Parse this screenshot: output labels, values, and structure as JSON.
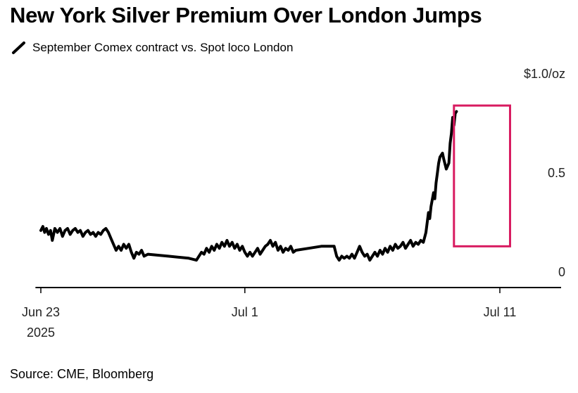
{
  "title": "New York Silver Premium Over London Jumps",
  "legend": {
    "label": "September Comex contract vs. Spot loco London",
    "color": "#000000"
  },
  "source": "Source: CME, Bloomberg",
  "highlight_color": "#d81b60",
  "chart_data": {
    "type": "line",
    "title": "New York Silver Premium Over London Jumps",
    "subtitle": "September Comex contract vs. Spot loco London",
    "xlabel": "",
    "ylabel": "",
    "y_unit_label": "$1.0/oz",
    "ylim": [
      0,
      1.0
    ],
    "y_ticks": [
      {
        "value": 1.0,
        "label": "$1.0/oz"
      },
      {
        "value": 0.5,
        "label": "0.5"
      },
      {
        "value": 0,
        "label": "0"
      }
    ],
    "x_ticks": [
      {
        "t": 0,
        "label": "Jun 23",
        "sublabel": "2025"
      },
      {
        "t": 8,
        "label": "Jul 1",
        "sublabel": ""
      },
      {
        "t": 18,
        "label": "Jul 11",
        "sublabel": ""
      }
    ],
    "x_range": [
      -0.1,
      20.5
    ],
    "grid": false,
    "highlight": {
      "t_start": 16.2,
      "t_end": 18.4,
      "y_start": 0.13,
      "y_end": 0.84
    },
    "series": [
      {
        "name": "September Comex contract vs. Spot loco London",
        "color": "#000000",
        "points": [
          [
            0.0,
            0.21
          ],
          [
            0.08,
            0.23
          ],
          [
            0.15,
            0.2
          ],
          [
            0.22,
            0.22
          ],
          [
            0.3,
            0.19
          ],
          [
            0.38,
            0.21
          ],
          [
            0.45,
            0.16
          ],
          [
            0.55,
            0.22
          ],
          [
            0.65,
            0.2
          ],
          [
            0.75,
            0.22
          ],
          [
            0.85,
            0.18
          ],
          [
            0.95,
            0.21
          ],
          [
            1.05,
            0.22
          ],
          [
            1.15,
            0.19
          ],
          [
            1.25,
            0.21
          ],
          [
            1.35,
            0.22
          ],
          [
            1.45,
            0.2
          ],
          [
            1.55,
            0.21
          ],
          [
            1.65,
            0.18
          ],
          [
            1.75,
            0.2
          ],
          [
            1.85,
            0.21
          ],
          [
            1.95,
            0.19
          ],
          [
            2.05,
            0.2
          ],
          [
            2.15,
            0.18
          ],
          [
            2.25,
            0.2
          ],
          [
            2.35,
            0.19
          ],
          [
            2.45,
            0.21
          ],
          [
            2.55,
            0.22
          ],
          [
            2.65,
            0.2
          ],
          [
            2.75,
            0.17
          ],
          [
            2.85,
            0.14
          ],
          [
            2.95,
            0.11
          ],
          [
            3.05,
            0.13
          ],
          [
            3.15,
            0.11
          ],
          [
            3.25,
            0.14
          ],
          [
            3.35,
            0.12
          ],
          [
            3.45,
            0.14
          ],
          [
            3.55,
            0.1
          ],
          [
            3.65,
            0.07
          ],
          [
            3.75,
            0.1
          ],
          [
            3.85,
            0.09
          ],
          [
            3.95,
            0.11
          ],
          [
            4.05,
            0.08
          ],
          [
            4.2,
            0.09
          ],
          [
            5.0,
            0.08
          ],
          [
            5.8,
            0.07
          ],
          [
            6.1,
            0.06
          ],
          [
            6.2,
            0.08
          ],
          [
            6.3,
            0.1
          ],
          [
            6.4,
            0.09
          ],
          [
            6.5,
            0.12
          ],
          [
            6.6,
            0.1
          ],
          [
            6.7,
            0.13
          ],
          [
            6.8,
            0.11
          ],
          [
            6.9,
            0.14
          ],
          [
            7.0,
            0.12
          ],
          [
            7.1,
            0.15
          ],
          [
            7.2,
            0.13
          ],
          [
            7.3,
            0.16
          ],
          [
            7.4,
            0.13
          ],
          [
            7.5,
            0.15
          ],
          [
            7.6,
            0.12
          ],
          [
            7.7,
            0.14
          ],
          [
            7.8,
            0.11
          ],
          [
            7.9,
            0.13
          ],
          [
            8.0,
            0.1
          ],
          [
            8.1,
            0.08
          ],
          [
            8.2,
            0.1
          ],
          [
            8.3,
            0.08
          ],
          [
            8.4,
            0.1
          ],
          [
            8.5,
            0.12
          ],
          [
            8.6,
            0.09
          ],
          [
            8.7,
            0.11
          ],
          [
            8.8,
            0.13
          ],
          [
            8.9,
            0.14
          ],
          [
            9.0,
            0.16
          ],
          [
            9.1,
            0.13
          ],
          [
            9.2,
            0.15
          ],
          [
            9.3,
            0.11
          ],
          [
            9.4,
            0.13
          ],
          [
            9.5,
            0.1
          ],
          [
            9.6,
            0.12
          ],
          [
            9.7,
            0.11
          ],
          [
            9.8,
            0.13
          ],
          [
            9.9,
            0.1
          ],
          [
            10.0,
            0.11
          ],
          [
            10.5,
            0.12
          ],
          [
            11.0,
            0.13
          ],
          [
            11.5,
            0.13
          ],
          [
            11.6,
            0.08
          ],
          [
            11.7,
            0.06
          ],
          [
            11.8,
            0.08
          ],
          [
            11.9,
            0.07
          ],
          [
            12.0,
            0.08
          ],
          [
            12.1,
            0.07
          ],
          [
            12.2,
            0.09
          ],
          [
            12.3,
            0.07
          ],
          [
            12.4,
            0.1
          ],
          [
            12.5,
            0.13
          ],
          [
            12.6,
            0.1
          ],
          [
            12.7,
            0.08
          ],
          [
            12.8,
            0.09
          ],
          [
            12.9,
            0.06
          ],
          [
            13.0,
            0.08
          ],
          [
            13.1,
            0.1
          ],
          [
            13.2,
            0.08
          ],
          [
            13.3,
            0.11
          ],
          [
            13.4,
            0.09
          ],
          [
            13.5,
            0.12
          ],
          [
            13.6,
            0.1
          ],
          [
            13.7,
            0.13
          ],
          [
            13.8,
            0.11
          ],
          [
            13.9,
            0.14
          ],
          [
            14.0,
            0.12
          ],
          [
            14.1,
            0.13
          ],
          [
            14.2,
            0.15
          ],
          [
            14.3,
            0.12
          ],
          [
            14.4,
            0.14
          ],
          [
            14.5,
            0.16
          ],
          [
            14.6,
            0.13
          ],
          [
            14.7,
            0.15
          ],
          [
            14.8,
            0.14
          ],
          [
            14.9,
            0.16
          ],
          [
            15.0,
            0.15
          ],
          [
            15.1,
            0.2
          ],
          [
            15.2,
            0.3
          ],
          [
            15.25,
            0.27
          ],
          [
            15.3,
            0.33
          ],
          [
            15.4,
            0.4
          ],
          [
            15.45,
            0.37
          ],
          [
            15.5,
            0.45
          ],
          [
            15.55,
            0.5
          ],
          [
            15.6,
            0.55
          ],
          [
            15.65,
            0.58
          ],
          [
            15.75,
            0.6
          ],
          [
            15.8,
            0.57
          ],
          [
            15.9,
            0.52
          ],
          [
            16.0,
            0.55
          ],
          [
            16.05,
            0.65
          ],
          [
            16.1,
            0.7
          ],
          [
            16.15,
            0.78
          ],
          [
            16.2,
            0.74
          ],
          [
            16.25,
            0.8
          ],
          [
            16.3,
            0.81
          ]
        ]
      }
    ]
  }
}
